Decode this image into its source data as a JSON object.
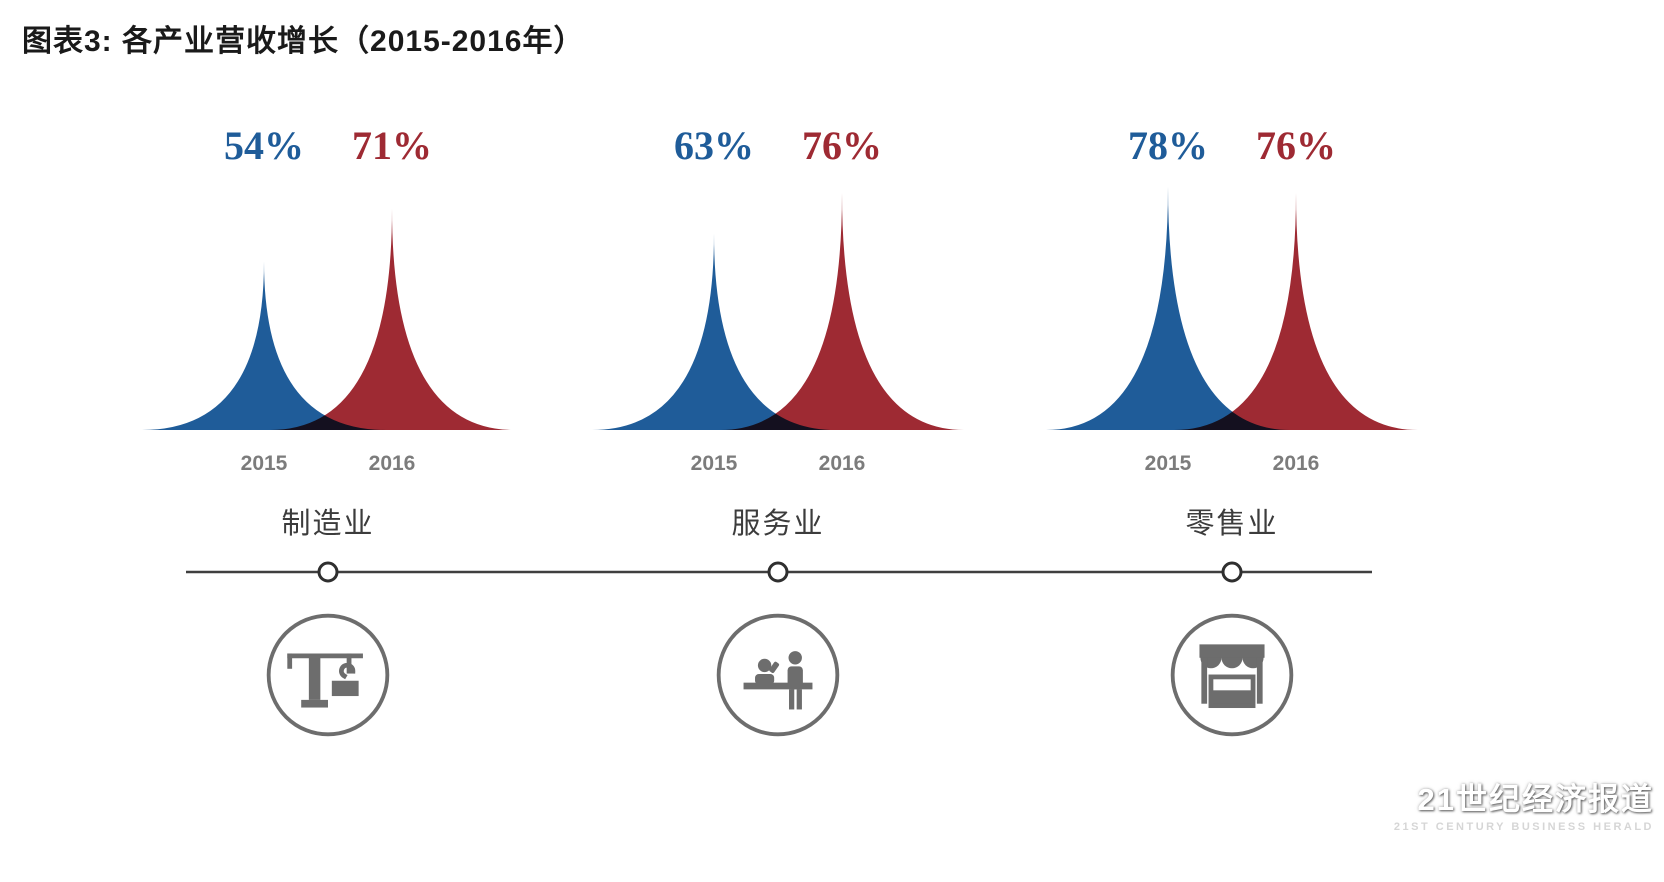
{
  "title": "图表3: 各产业营收增长（2015-2016年）",
  "colors": {
    "blue": "#1f5c99",
    "red": "#9e2a33",
    "overlap": "#14182b",
    "icon": "#6d6d6d",
    "axis": "#3f3f3f",
    "year": "#7c7c7c",
    "label": "#3c3c3c",
    "title": "#1a1a1a"
  },
  "chart_data": {
    "type": "area",
    "title": "图表3: 各产业营收增长（2015-2016年）",
    "categories": [
      "制造业",
      "服务业",
      "零售业"
    ],
    "series": [
      {
        "name": "2015",
        "color": "#1f5c99",
        "values": [
          54,
          63,
          78
        ]
      },
      {
        "name": "2016",
        "color": "#9e2a33",
        "values": [
          71,
          76,
          76
        ]
      }
    ],
    "unit": "%",
    "ylim": [
      0,
      80
    ],
    "grid": false,
    "legend_position": "labels-above-peaks",
    "note": "overlapping peak/spike shapes per category; overlap region renders dark navy"
  },
  "groups": [
    {
      "label": "制造业",
      "icon": "crane-icon",
      "pct2015": "54%",
      "pct2016": "71%",
      "year2015": "2015",
      "year2016": "2016"
    },
    {
      "label": "服务业",
      "icon": "service-desk-icon",
      "pct2015": "63%",
      "pct2016": "76%",
      "year2015": "2015",
      "year2016": "2016"
    },
    {
      "label": "零售业",
      "icon": "market-stall-icon",
      "pct2015": "78%",
      "pct2016": "76%",
      "year2015": "2015",
      "year2016": "2016"
    }
  ],
  "watermark": {
    "cn": "21世纪经济报道",
    "en": "21ST CENTURY BUSINESS HERALD"
  }
}
